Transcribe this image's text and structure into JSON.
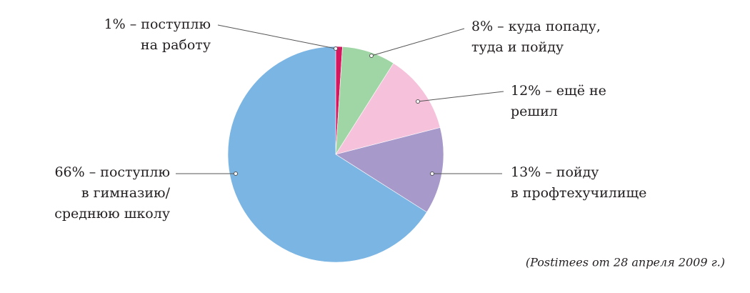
{
  "chart_data": {
    "type": "pie",
    "categories": [
      [
        "1% – поступлю",
        "на работу"
      ],
      [
        "8% – куда попаду,",
        "туда и пойду"
      ],
      [
        "12% – ещё не",
        "решил"
      ],
      [
        "13% – пойду",
        "в профтехучилище"
      ],
      [
        "66% – поступлю",
        "в гимназию/",
        "среднюю школу"
      ]
    ],
    "values": [
      1,
      8,
      12,
      13,
      66
    ],
    "colors": [
      "#d6175f",
      "#a0d6a5",
      "#f6c1da",
      "#a899cb",
      "#7bb5e3"
    ],
    "source": "(Postimees от 28 апреля 2009 г.)"
  }
}
